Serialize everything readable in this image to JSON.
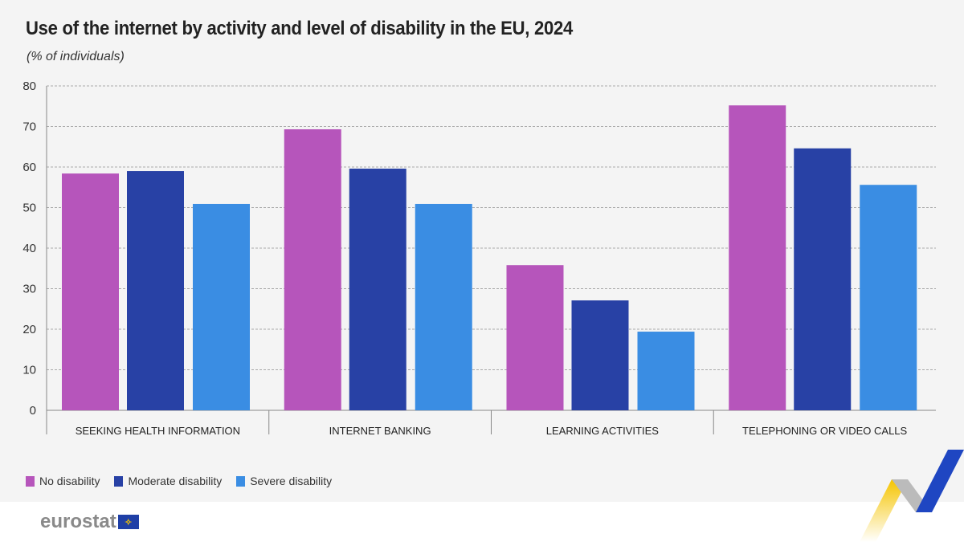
{
  "title": "Use of the internet by activity and level of disability in the EU, 2024",
  "subtitle": "(% of individuals)",
  "logo_text": "eurostat",
  "chart_data": {
    "type": "bar",
    "title": "Use of the internet by activity and level of disability in the EU, 2024",
    "ylabel": "(% of individuals)",
    "categories": [
      "SEEKING HEALTH INFORMATION",
      "INTERNET BANKING",
      "LEARNING ACTIVITIES",
      "TELEPHONING OR VIDEO CALLS"
    ],
    "series": [
      {
        "name": "No disability",
        "color": "#b655bb",
        "values": [
          58.4,
          69.3,
          35.8,
          75.2
        ]
      },
      {
        "name": "Moderate disability",
        "color": "#2841a5",
        "values": [
          59.0,
          59.6,
          27.1,
          64.6
        ]
      },
      {
        "name": "Severe disability",
        "color": "#3a8de3",
        "values": [
          50.9,
          50.9,
          19.4,
          55.6
        ]
      }
    ],
    "ylim": [
      0,
      80
    ],
    "yticks": [
      0,
      10,
      20,
      30,
      40,
      50,
      60,
      70,
      80
    ],
    "grid": true,
    "legend_position": "bottom-left"
  }
}
